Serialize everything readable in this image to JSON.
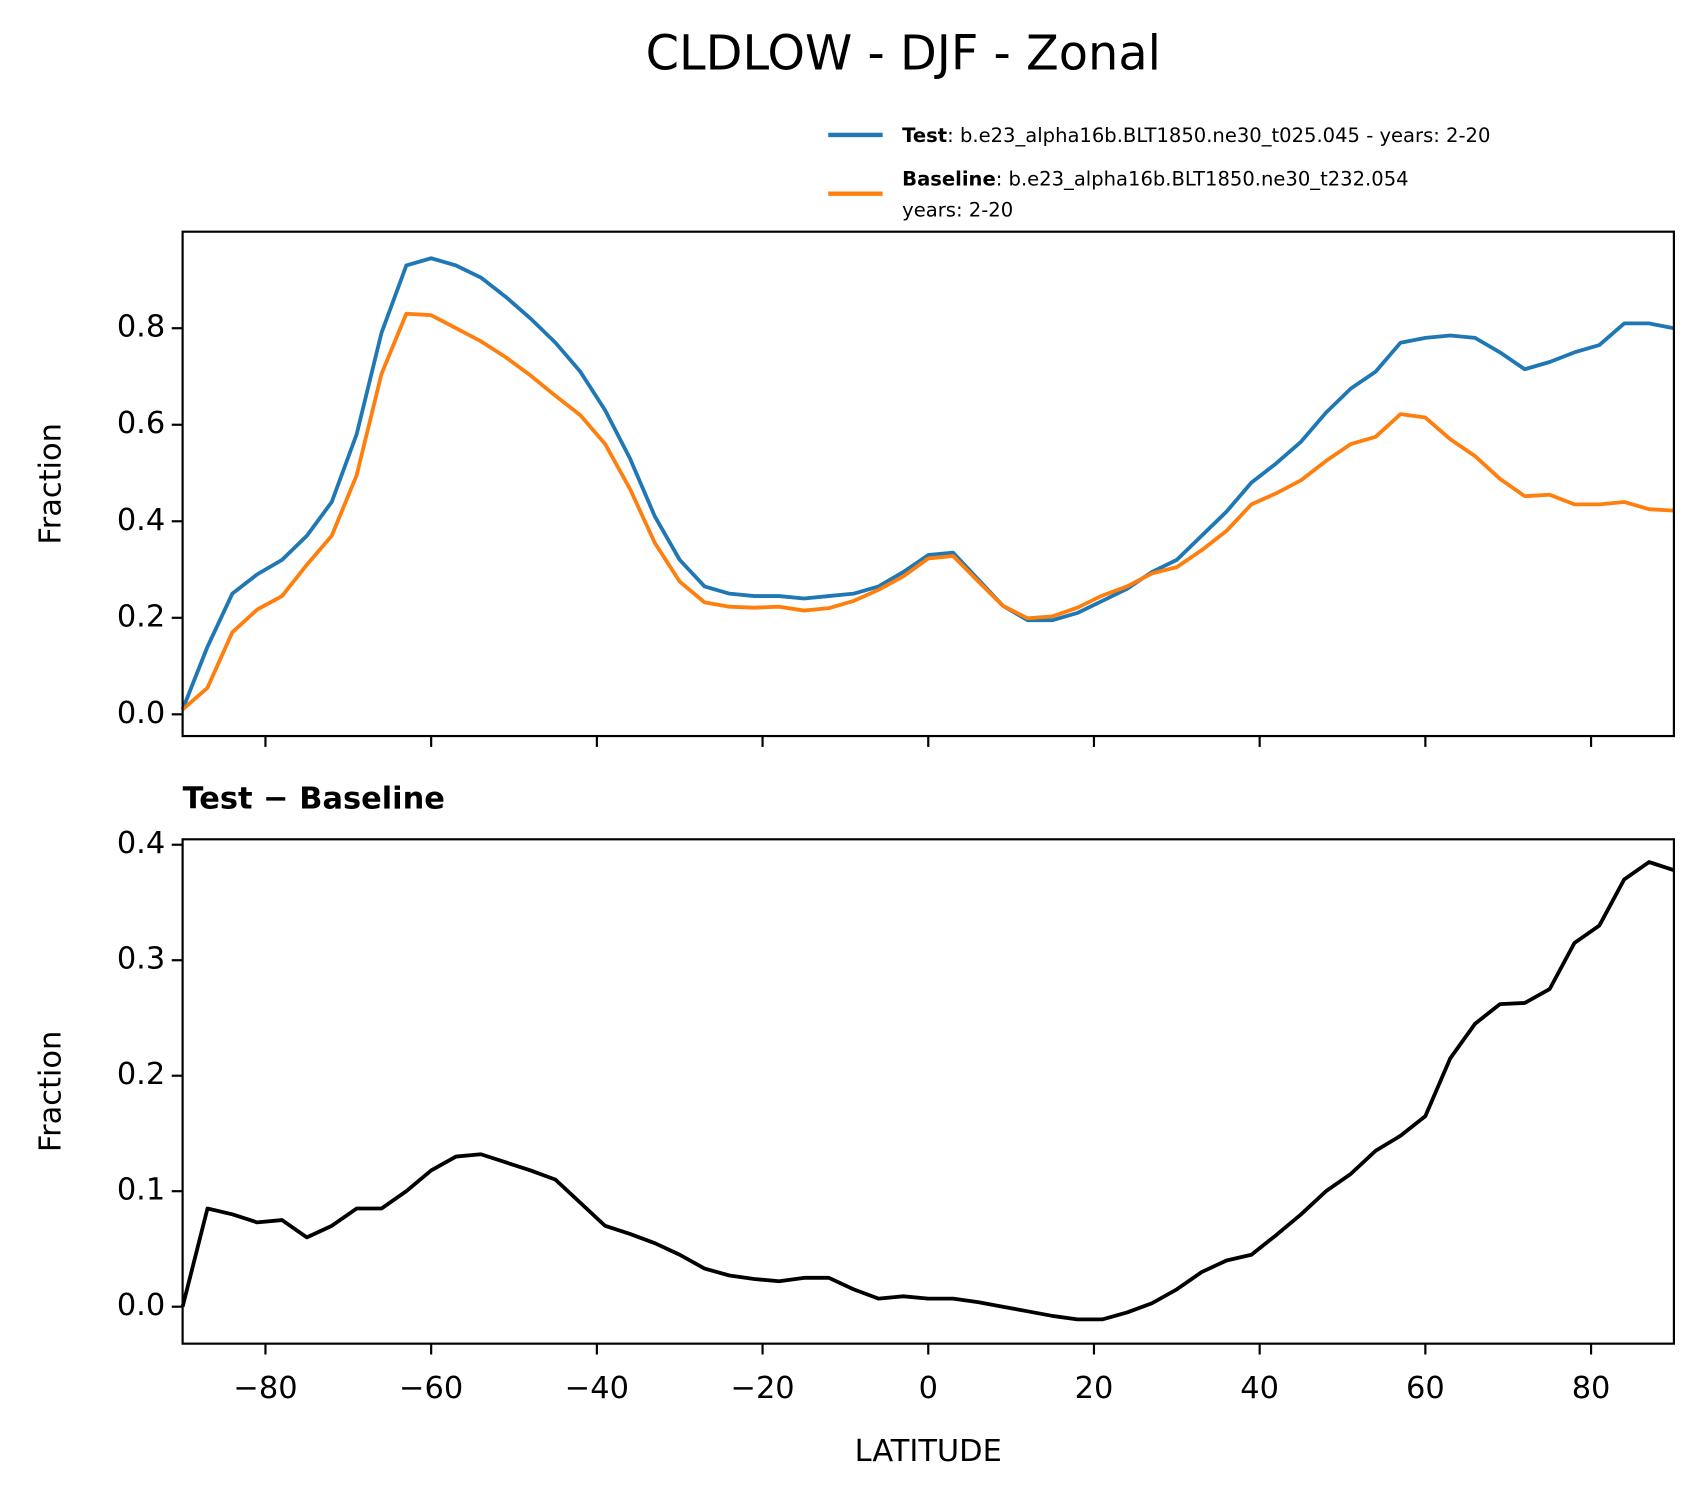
{
  "title": "CLDLOW - DJF - Zonal",
  "chart_data": [
    {
      "type": "line",
      "x": [
        -90,
        -87,
        -84,
        -81,
        -78,
        -75,
        -72,
        -69,
        -66,
        -63,
        -60,
        -57,
        -54,
        -51,
        -48,
        -45,
        -42,
        -39,
        -36,
        -33,
        -30,
        -27,
        -24,
        -21,
        -18,
        -15,
        -12,
        -9,
        -6,
        -3,
        0,
        3,
        6,
        9,
        12,
        15,
        18,
        21,
        24,
        27,
        30,
        33,
        36,
        39,
        42,
        45,
        48,
        51,
        54,
        57,
        60,
        63,
        66,
        69,
        72,
        75,
        78,
        81,
        84,
        87,
        90
      ],
      "series": [
        {
          "name": "Test",
          "color": "#1f77b4",
          "description": [
            ": b.e23_alpha16b.BLT1850.ne30_t025.045 - years: 2-20"
          ],
          "values": [
            0.01,
            0.14,
            0.25,
            0.29,
            0.32,
            0.37,
            0.44,
            0.58,
            0.79,
            0.93,
            0.945,
            0.93,
            0.905,
            0.865,
            0.82,
            0.77,
            0.71,
            0.63,
            0.53,
            0.41,
            0.32,
            0.265,
            0.25,
            0.245,
            0.245,
            0.24,
            0.245,
            0.25,
            0.265,
            0.295,
            0.33,
            0.335,
            0.28,
            0.225,
            0.195,
            0.195,
            0.21,
            0.235,
            0.26,
            0.295,
            0.32,
            0.37,
            0.42,
            0.48,
            0.52,
            0.565,
            0.625,
            0.675,
            0.71,
            0.77,
            0.78,
            0.785,
            0.78,
            0.75,
            0.715,
            0.73,
            0.75,
            0.765,
            0.81,
            0.81,
            0.8
          ]
        },
        {
          "name": "Baseline",
          "color": "#ff7f0e",
          "description": [
            ": b.e23_alpha16b.BLT1850.ne30_t232.054",
            "years: 2-20"
          ],
          "values": [
            0.01,
            0.055,
            0.17,
            0.217,
            0.245,
            0.31,
            0.37,
            0.495,
            0.705,
            0.83,
            0.827,
            0.8,
            0.773,
            0.74,
            0.702,
            0.66,
            0.62,
            0.56,
            0.467,
            0.355,
            0.275,
            0.232,
            0.223,
            0.221,
            0.223,
            0.215,
            0.22,
            0.235,
            0.258,
            0.286,
            0.323,
            0.328,
            0.276,
            0.225,
            0.199,
            0.203,
            0.221,
            0.246,
            0.265,
            0.292,
            0.305,
            0.34,
            0.38,
            0.435,
            0.458,
            0.485,
            0.525,
            0.56,
            0.575,
            0.622,
            0.615,
            0.57,
            0.535,
            0.488,
            0.452,
            0.455,
            0.435,
            0.435,
            0.44,
            0.425,
            0.422
          ]
        }
      ],
      "ylabel": "Fraction",
      "xlim": [
        -90,
        90
      ],
      "xticks": [
        -80,
        -60,
        -40,
        -20,
        0,
        20,
        40,
        60,
        80
      ],
      "ylim": [
        -0.045,
        1.0
      ],
      "yticks": [
        {
          "value": 0,
          "label": "0.0"
        },
        0.2,
        0.4,
        0.6,
        0.8
      ]
    },
    {
      "type": "line",
      "title": "Test − Baseline",
      "x": [
        -90,
        -87,
        -84,
        -81,
        -78,
        -75,
        -72,
        -69,
        -66,
        -63,
        -60,
        -57,
        -54,
        -51,
        -48,
        -45,
        -42,
        -39,
        -36,
        -33,
        -30,
        -27,
        -24,
        -21,
        -18,
        -15,
        -12,
        -9,
        -6,
        -3,
        0,
        3,
        6,
        9,
        12,
        15,
        18,
        21,
        24,
        27,
        30,
        33,
        36,
        39,
        42,
        45,
        48,
        51,
        54,
        57,
        60,
        63,
        66,
        69,
        72,
        75,
        78,
        81,
        84,
        87,
        90
      ],
      "color": "#000000",
      "values": [
        0.0,
        0.085,
        0.08,
        0.073,
        0.075,
        0.06,
        0.07,
        0.085,
        0.085,
        0.1,
        0.118,
        0.13,
        0.132,
        0.125,
        0.118,
        0.11,
        0.09,
        0.07,
        0.063,
        0.055,
        0.045,
        0.033,
        0.027,
        0.024,
        0.022,
        0.025,
        0.025,
        0.015,
        0.007,
        0.009,
        0.007,
        0.007,
        0.004,
        0.0,
        -0.004,
        -0.008,
        -0.011,
        -0.011,
        -0.005,
        0.003,
        0.015,
        0.03,
        0.04,
        0.045,
        0.062,
        0.08,
        0.1,
        0.115,
        0.135,
        0.148,
        0.165,
        0.215,
        0.245,
        0.262,
        0.263,
        0.275,
        0.315,
        0.33,
        0.37,
        0.385,
        0.378
      ],
      "xlabel": "LATITUDE",
      "ylabel": "Fraction",
      "xlim": [
        -90,
        90
      ],
      "xticks": [
        {
          "value": -80,
          "label": "−80"
        },
        {
          "value": -60,
          "label": "−60"
        },
        {
          "value": -40,
          "label": "−40"
        },
        {
          "value": -20,
          "label": "−20"
        },
        0,
        20,
        40,
        60,
        80
      ],
      "ylim": [
        -0.032,
        0.4047
      ],
      "yticks": [
        {
          "value": 0,
          "label": "0.0"
        },
        0.1,
        0.2,
        0.3,
        0.4
      ]
    }
  ]
}
